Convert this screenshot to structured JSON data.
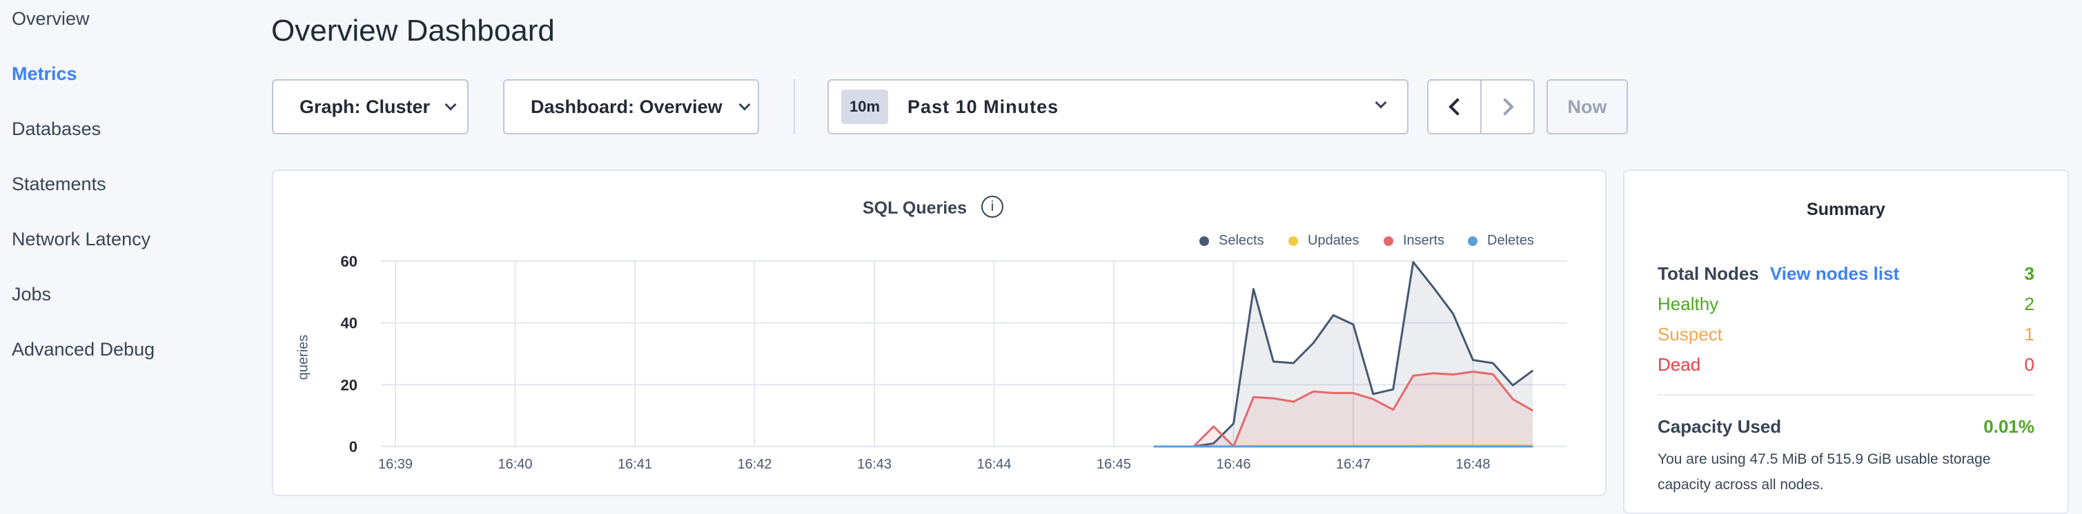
{
  "sidebar": {
    "items": [
      {
        "label": "Overview"
      },
      {
        "label": "Metrics",
        "active": true
      },
      {
        "label": "Databases"
      },
      {
        "label": "Statements"
      },
      {
        "label": "Network Latency"
      },
      {
        "label": "Jobs"
      },
      {
        "label": "Advanced Debug"
      }
    ]
  },
  "header": {
    "title": "Overview Dashboard"
  },
  "controls": {
    "graph": "Graph: Cluster",
    "dashboard": "Dashboard: Overview",
    "time_badge": "10m",
    "time_range": "Past 10 Minutes",
    "now": "Now"
  },
  "chart_data": {
    "type": "area",
    "title": "SQL Queries",
    "ylabel": "queries",
    "ylim": [
      0,
      60
    ],
    "yticks": [
      0,
      20,
      40,
      60
    ],
    "xticks": [
      "16:39",
      "16:40",
      "16:41",
      "16:42",
      "16:43",
      "16:44",
      "16:45",
      "16:46",
      "16:47",
      "16:48"
    ],
    "legend_position": "top-right",
    "grid": true,
    "x": [
      "16:45:20",
      "16:45:30",
      "16:45:40",
      "16:45:50",
      "16:46:00",
      "16:46:10",
      "16:46:20",
      "16:46:30",
      "16:46:40",
      "16:46:50",
      "16:47:00",
      "16:47:10",
      "16:47:20",
      "16:47:30",
      "16:47:40",
      "16:47:50",
      "16:48:00",
      "16:48:10",
      "16:48:20",
      "16:48:30"
    ],
    "series": [
      {
        "name": "Selects",
        "color": "#475872",
        "values": [
          0,
          0,
          0,
          1,
          7.4,
          51,
          27.5,
          27,
          33.5,
          42.5,
          39.5,
          17,
          18.5,
          59.7,
          51.6,
          43,
          28,
          27,
          19.8,
          24.6
        ]
      },
      {
        "name": "Updates",
        "color": "#f5c842",
        "values": [
          0,
          0,
          0,
          0,
          0,
          0.2,
          0.2,
          0.2,
          0.2,
          0.2,
          0.2,
          0.2,
          0.2,
          0.2,
          0.3,
          0.3,
          0.3,
          0.3,
          0.3,
          0.3
        ]
      },
      {
        "name": "Inserts",
        "color": "#e5686b",
        "values": [
          0,
          0,
          0,
          6.5,
          0,
          16,
          15.6,
          14.5,
          17.8,
          17.3,
          17.3,
          15.3,
          11.9,
          22.9,
          23.7,
          23.3,
          24.2,
          23.4,
          15.3,
          11.6
        ]
      },
      {
        "name": "Deletes",
        "color": "#5b9fd1",
        "values": [
          0,
          0,
          0,
          0,
          0,
          0,
          0,
          0,
          0,
          0,
          0,
          0,
          0,
          0,
          0,
          0,
          0,
          0,
          0,
          0
        ]
      }
    ]
  },
  "summary": {
    "title": "Summary",
    "total_label": "Total Nodes",
    "view_link": "View nodes list",
    "total": "3",
    "healthy_label": "Healthy",
    "healthy": "2",
    "suspect_label": "Suspect",
    "suspect": "1",
    "dead_label": "Dead",
    "dead": "0",
    "capacity_label": "Capacity Used",
    "capacity": "0.01%",
    "capacity_text": "You are using 47.5 MiB of 515.9 GiB usable storage capacity across all nodes.",
    "colors": {
      "healthy": "#4fa526",
      "suspect": "#f5a54a",
      "dead": "#e5414a",
      "link": "#3b82f6"
    }
  }
}
